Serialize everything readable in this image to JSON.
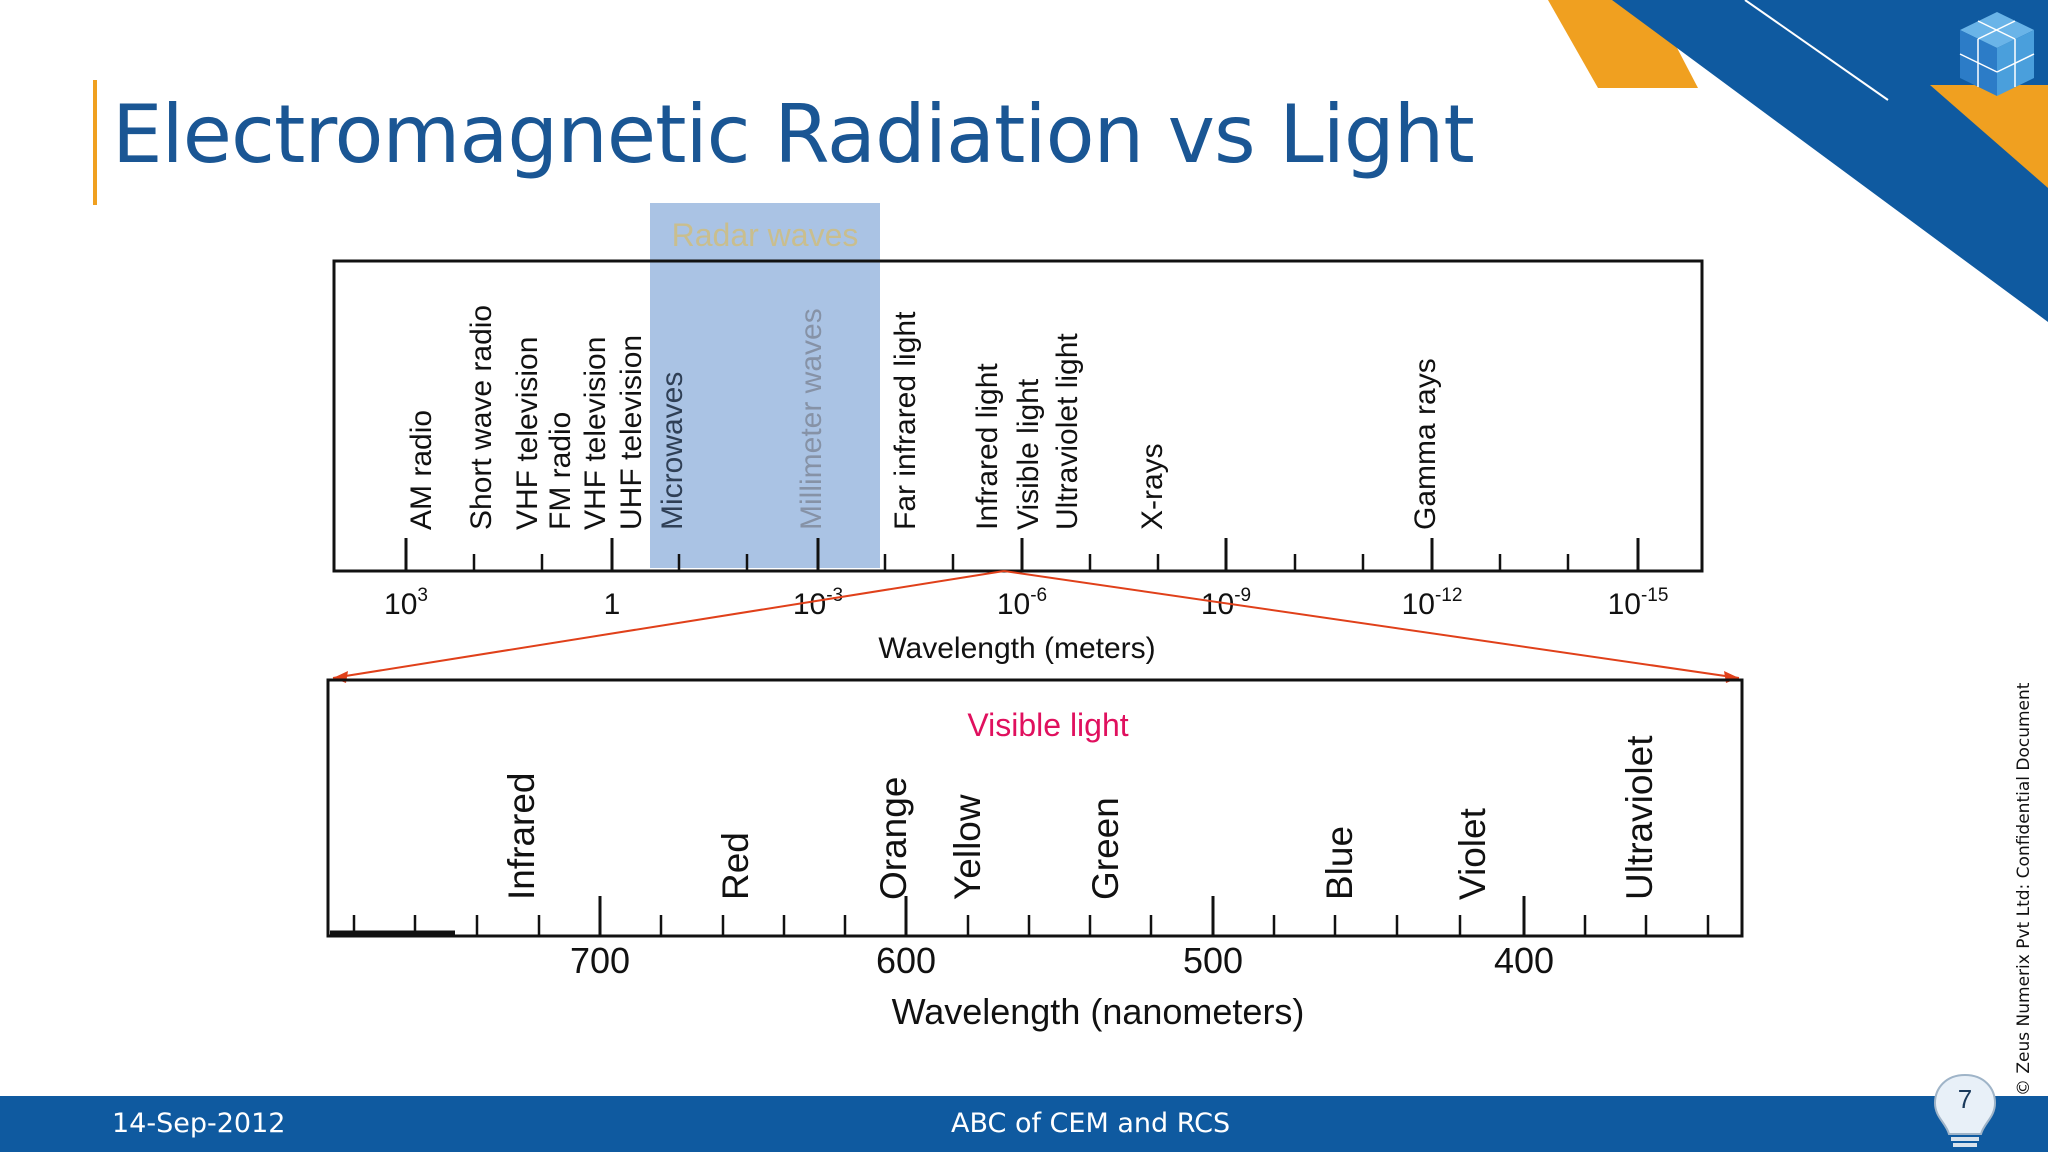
{
  "slide": {
    "title": "Electromagnetic Radiation vs Light",
    "footer_date": "14-Sep-2012",
    "footer_center": "ABC of CEM and RCS",
    "page_number": "7",
    "confidential": "© Zeus Numerix Pvt Ltd: Confidential Document"
  },
  "colors": {
    "title": "#1a5694",
    "footer": "#0f5aa0",
    "accent_orange": "#f0a020",
    "radar_band": "#9bb8df",
    "zoom_lines": "#e0401a",
    "visible_light_label": "#e0105e"
  },
  "icons": {
    "logo": "cube-logo-icon",
    "page_badge": "lightbulb-icon"
  },
  "spectrum": {
    "radar_label": "Radar waves",
    "bands": [
      "AM radio",
      "Short wave radio",
      "VHF television",
      "FM radio",
      "VHF television",
      "UHF television",
      "Microwaves",
      "Millimeter waves",
      "Far infrared light",
      "Infrared light",
      "Visible light",
      "Ultraviolet light",
      "X-rays",
      "Gamma rays"
    ],
    "ticks": [
      {
        "base": "10",
        "exp": "3"
      },
      {
        "base": "1",
        "exp": ""
      },
      {
        "base": "10",
        "exp": "-3"
      },
      {
        "base": "10",
        "exp": "-6"
      },
      {
        "base": "10",
        "exp": "-9"
      },
      {
        "base": "10",
        "exp": "-12"
      },
      {
        "base": "10",
        "exp": "-15"
      }
    ],
    "xlabel": "Wavelength (meters)"
  },
  "visible": {
    "title": "Visible light",
    "colors": [
      "Infrared",
      "Red",
      "Orange",
      "Yellow",
      "Green",
      "Blue",
      "Violet",
      "Ultraviolet"
    ],
    "ticks": [
      "700",
      "600",
      "500",
      "400"
    ],
    "xlabel": "Wavelength (nanometers)"
  }
}
